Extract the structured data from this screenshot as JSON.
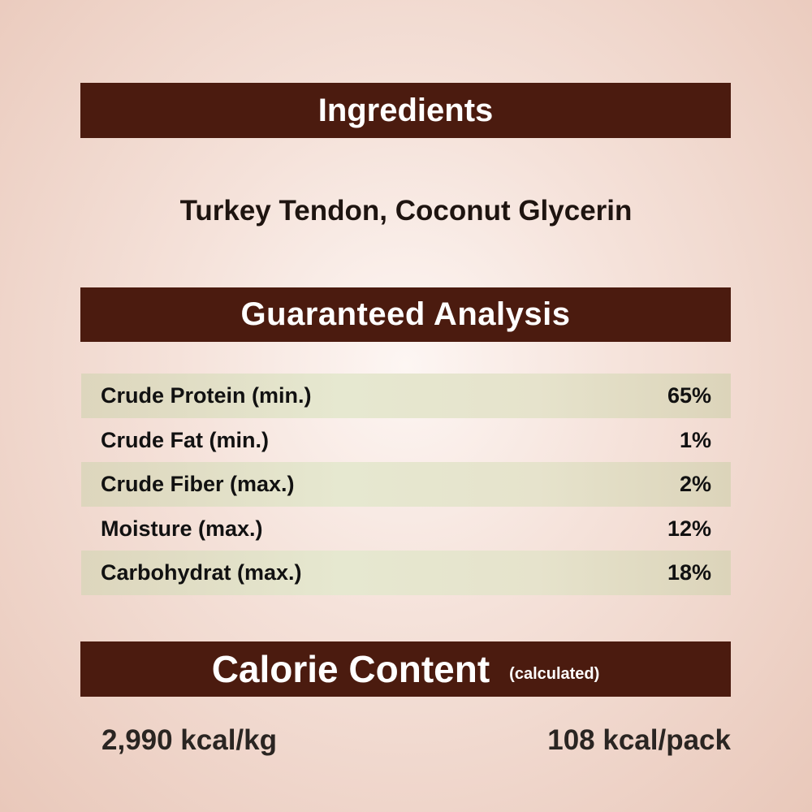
{
  "ingredients": {
    "title": "Ingredients",
    "text": "Turkey Tendon, Coconut Glycerin"
  },
  "analysis": {
    "title": "Guaranteed Analysis",
    "rows": [
      {
        "label": "Crude Protein (min.)",
        "value": "65%"
      },
      {
        "label": "Crude Fat (min.)",
        "value": "1%"
      },
      {
        "label": "Crude Fiber (max.)",
        "value": "2%"
      },
      {
        "label": "Moisture (max.)",
        "value": "12%"
      },
      {
        "label": "Carbohydrat (max.)",
        "value": "18%"
      }
    ]
  },
  "calorie": {
    "title": "Calorie Content",
    "subtitle": "(calculated)",
    "per_kg": "2,990 kcal/kg",
    "per_pack": "108 kcal/pack"
  },
  "colors": {
    "banner": "#4b1b0f",
    "row_shade": "#e3e1c8"
  }
}
